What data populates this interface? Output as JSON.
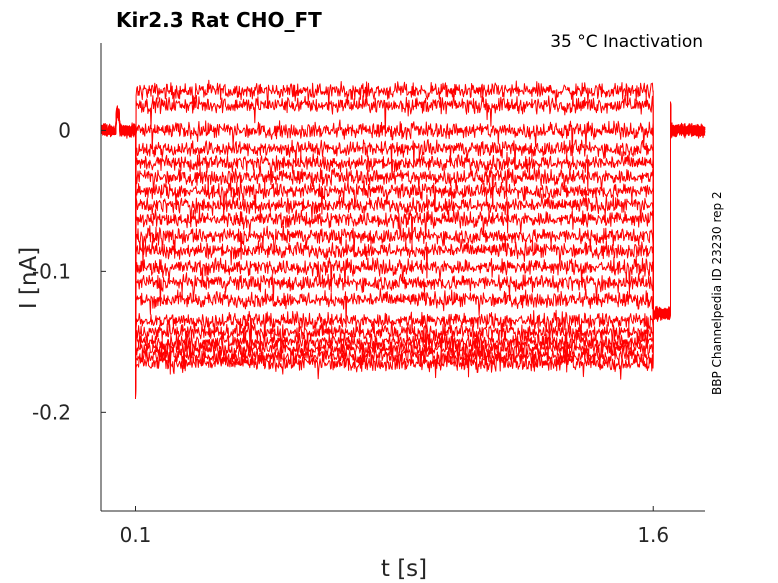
{
  "chart_data": {
    "type": "line",
    "title": "Kir2.3  Rat  CHO_FT",
    "subtitle": "35 °C  Inactivation",
    "side_label": "BBP Channelpedia ID 23230 rep 2",
    "xlabel": "t [s]",
    "ylabel": "I [nA]",
    "xlim": [
      0.0,
      1.75
    ],
    "ylim": [
      -0.27,
      0.062
    ],
    "x_ticks": [
      {
        "value": 0.1,
        "label": "0.1"
      },
      {
        "value": 1.6,
        "label": "1.6"
      }
    ],
    "y_ticks": [
      {
        "value": 0,
        "label": "0"
      },
      {
        "value": -0.1,
        "label": "-0.1"
      },
      {
        "value": -0.2,
        "label": "-0.2"
      }
    ],
    "grid": false,
    "color": "#ff0000",
    "protocol": {
      "baseline_nA": 0.0,
      "step_start_s": 0.1,
      "step_end_s": 1.6,
      "post_step_end_s": 1.65,
      "post_step_level_nA": -0.13
    },
    "series": [
      {
        "step_level_nA": 0.028
      },
      {
        "step_level_nA": 0.018
      },
      {
        "step_level_nA": 0.0
      },
      {
        "step_level_nA": -0.013
      },
      {
        "step_level_nA": -0.023
      },
      {
        "step_level_nA": -0.033
      },
      {
        "step_level_nA": -0.043
      },
      {
        "step_level_nA": -0.053
      },
      {
        "step_level_nA": -0.063
      },
      {
        "step_level_nA": -0.075
      },
      {
        "step_level_nA": -0.085
      },
      {
        "step_level_nA": -0.097
      },
      {
        "step_level_nA": -0.108
      },
      {
        "step_level_nA": -0.12
      },
      {
        "step_level_nA": -0.135
      },
      {
        "step_level_nA": -0.143
      },
      {
        "step_level_nA": -0.15
      },
      {
        "step_level_nA": -0.155
      },
      {
        "step_level_nA": -0.16
      },
      {
        "step_level_nA": -0.165
      }
    ]
  }
}
